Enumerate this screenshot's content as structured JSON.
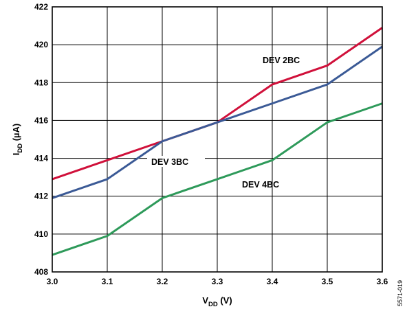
{
  "chart_data": {
    "type": "line",
    "xlabel": {
      "main": "V",
      "sub": "DD",
      "unit": " (V)"
    },
    "ylabel": {
      "main": "I",
      "sub": "DD",
      "unit": " (µA)"
    },
    "xlim": [
      3.0,
      3.6
    ],
    "ylim": [
      408,
      422
    ],
    "x_ticks": [
      "3.0",
      "3.1",
      "3.2",
      "3.3",
      "3.4",
      "3.5",
      "3.6"
    ],
    "y_ticks": [
      "408",
      "410",
      "412",
      "414",
      "416",
      "418",
      "420",
      "422"
    ],
    "grid": true,
    "x": [
      3.0,
      3.1,
      3.2,
      3.3,
      3.4,
      3.5,
      3.6
    ],
    "series": [
      {
        "name": "DEV 2BC",
        "color": "#d0103a",
        "values": [
          412.9,
          413.9,
          414.9,
          415.9,
          417.9,
          418.9,
          420.9
        ]
      },
      {
        "name": "DEV 3BC",
        "color": "#3b5a96",
        "values": [
          411.9,
          412.9,
          414.9,
          415.9,
          416.9,
          417.9,
          419.9
        ]
      },
      {
        "name": "DEV 4BC",
        "color": "#2e9a5a",
        "values": [
          408.9,
          409.9,
          411.9,
          412.9,
          413.9,
          415.9,
          416.9
        ]
      }
    ],
    "figure_id": "5571-019"
  }
}
